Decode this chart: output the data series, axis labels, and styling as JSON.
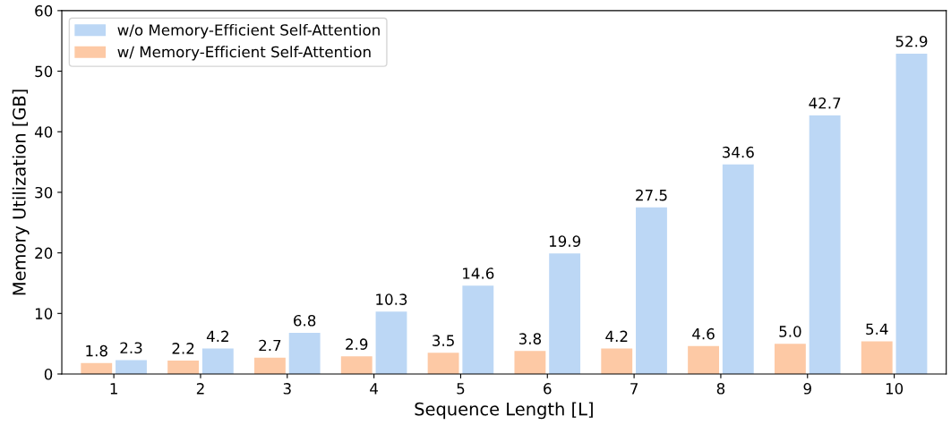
{
  "chart_data": {
    "type": "bar",
    "xlabel": "Sequence Length [L]",
    "ylabel": "Memory Utilization [GB]",
    "categories": [
      "1",
      "2",
      "3",
      "4",
      "5",
      "6",
      "7",
      "8",
      "9",
      "10"
    ],
    "series": [
      {
        "name": "w/ Memory-Efficient Self-Attention",
        "color": "#fdc9a5",
        "values": [
          1.8,
          2.2,
          2.7,
          2.9,
          3.5,
          3.8,
          4.2,
          4.6,
          5.0,
          5.4
        ],
        "value_labels": [
          "1.8",
          "2.2",
          "2.7",
          "2.9",
          "3.5",
          "3.8",
          "4.2",
          "4.6",
          "5.0",
          "5.4"
        ]
      },
      {
        "name": "w/o Memory-Efficient Self-Attention",
        "color": "#bcd7f5",
        "values": [
          2.3,
          4.2,
          6.8,
          10.3,
          14.6,
          19.9,
          27.5,
          34.6,
          42.7,
          52.9
        ],
        "value_labels": [
          "2.3",
          "4.2",
          "6.8",
          "10.3",
          "14.6",
          "19.9",
          "27.5",
          "34.6",
          "42.7",
          "52.9"
        ]
      }
    ],
    "ylim": [
      0,
      60
    ],
    "yticks": [
      0,
      10,
      20,
      30,
      40,
      50,
      60
    ],
    "grid": false,
    "legend": "top left"
  }
}
